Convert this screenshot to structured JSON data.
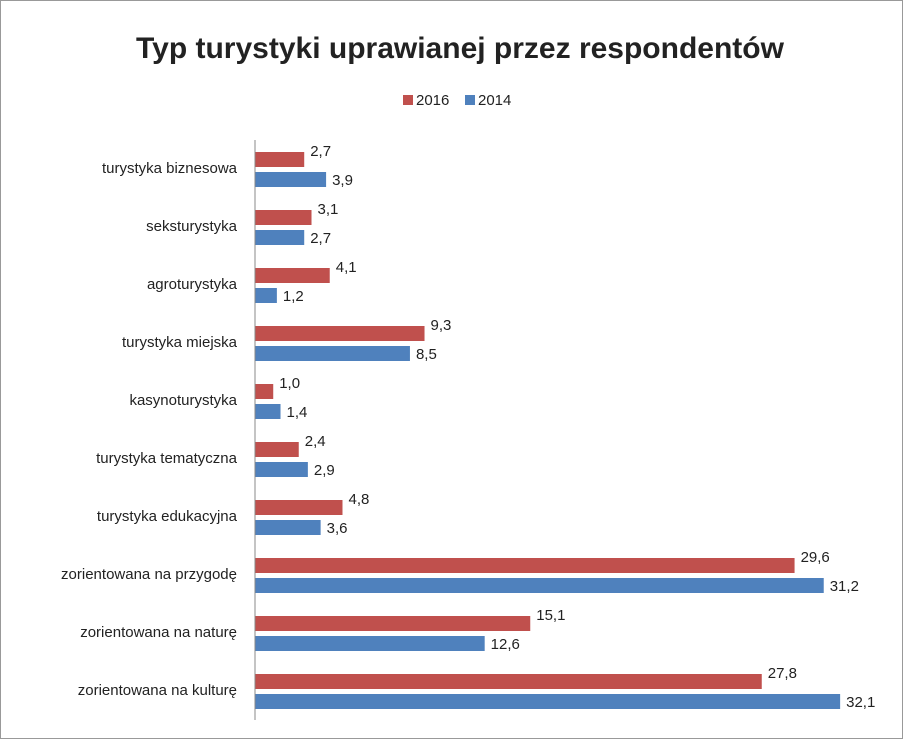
{
  "chart_data": {
    "type": "hbar",
    "title": "Typ turystyki uprawianej przez respondentów",
    "categories": [
      "turystyka biznesowa",
      "seksturystyka",
      "agroturystyka",
      "turystyka miejska",
      "kasynoturystyka",
      "turystyka tematyczna",
      "turystyka edukacyjna",
      "zorientowana na przygodę",
      "zorientowana na naturę",
      "zorientowana na kulturę"
    ],
    "series": [
      {
        "name": "2016",
        "color": "#c0504d",
        "values": [
          2.7,
          3.1,
          4.1,
          9.3,
          1.0,
          2.4,
          4.8,
          29.6,
          15.1,
          27.8
        ],
        "value_labels": [
          "2,7",
          "3,1",
          "4,1",
          "9,3",
          "1,0",
          "2,4",
          "4,8",
          "29,6",
          "15,1",
          "27,8"
        ]
      },
      {
        "name": "2014",
        "color": "#4f81bd",
        "values": [
          3.9,
          2.7,
          1.2,
          8.5,
          1.4,
          2.9,
          3.6,
          31.2,
          12.6,
          32.1
        ],
        "value_labels": [
          "3,9",
          "2,7",
          "1,2",
          "8,5",
          "1,4",
          "2,9",
          "3,6",
          "31,2",
          "12,6",
          "32,1"
        ]
      }
    ],
    "xlim": [
      0,
      35
    ],
    "legend": "top"
  }
}
